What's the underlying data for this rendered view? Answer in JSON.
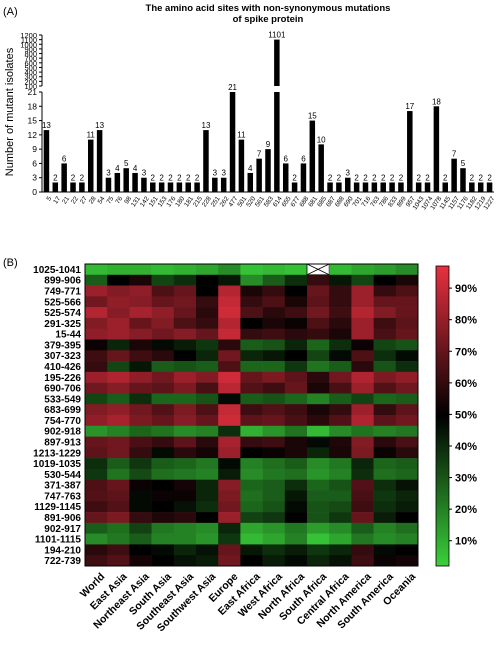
{
  "panel_a_label": "(A)",
  "panel_b_label": "(B)",
  "chart_data": [
    {
      "type": "bar",
      "title": "The amino acid sites with non-synonymous mutations of spike protein",
      "title_lines": [
        "The amino acid sites with non-synonymous mutations",
        "of spike protein"
      ],
      "ylabel": "Number of mutant isolates",
      "xlabel": "",
      "broken_axis": true,
      "lower_ticks": [
        0,
        3,
        6,
        9,
        12,
        15,
        18,
        21
      ],
      "upper_ticks": [
        100,
        200,
        300,
        400,
        500,
        600,
        700,
        800,
        900,
        1000,
        1100,
        1200
      ],
      "categories": [
        "5",
        "17",
        "21",
        "22",
        "27",
        "28",
        "54",
        "75",
        "76",
        "98",
        "131",
        "142",
        "151",
        "153",
        "176",
        "180",
        "181",
        "215",
        "228",
        "251",
        "262",
        "477",
        "501",
        "520",
        "561",
        "583",
        "614",
        "655",
        "677",
        "688",
        "681",
        "685",
        "687",
        "688",
        "690",
        "701",
        "716",
        "763",
        "786",
        "833",
        "899",
        "957",
        "1043",
        "1074",
        "1078",
        "1145",
        "1157",
        "1176",
        "1182",
        "1219",
        "1227"
      ],
      "values": [
        13,
        2,
        6,
        2,
        2,
        11,
        13,
        3,
        4,
        5,
        4,
        3,
        2,
        2,
        2,
        2,
        2,
        2,
        13,
        3,
        3,
        21,
        11,
        4,
        7,
        9,
        1101,
        6,
        2,
        6,
        15,
        10,
        2,
        2,
        3,
        2,
        2,
        2,
        2,
        2,
        2,
        17,
        2,
        2,
        18,
        2,
        7,
        5,
        2,
        2,
        2
      ],
      "data_labels": [
        "13",
        "2",
        "6",
        "2",
        "2",
        "11",
        "13",
        "3",
        "4",
        "5",
        "4",
        "3",
        "2",
        "2",
        "2",
        "2",
        "2",
        "2",
        "13",
        "3",
        "3",
        "21",
        "11",
        "4",
        "7",
        "9",
        "1101",
        "6",
        "2",
        "6",
        "15",
        "10",
        "2",
        "2",
        "3",
        "2",
        "2",
        "2",
        "2",
        "2",
        "2",
        "17",
        "2",
        "2",
        "18",
        "2",
        "7",
        "5",
        "2",
        "2",
        "2"
      ],
      "bar_color": "#000000"
    },
    {
      "type": "heatmap",
      "rows": [
        "1025-1041",
        "899-906",
        "749-771",
        "525-566",
        "525-574",
        "291-325",
        "15-44",
        "379-395",
        "307-323",
        "410-426",
        "195-226",
        "690-706",
        "533-549",
        "683-699",
        "754-770",
        "902-918",
        "897-913",
        "1213-1229",
        "1019-1035",
        "530-544",
        "371-387",
        "747-763",
        "1129-1145",
        "891-906",
        "902-917",
        "1101-1115",
        "194-210",
        "722-739"
      ],
      "columns": [
        "World",
        "East Asia",
        "Northeast Asia",
        "South Asia",
        "Southeast Asia",
        "Southwest Asia",
        "Europe",
        "East Africa",
        "West Africa",
        "North Africa",
        "South Africa",
        "Central Africa",
        "North America",
        "South America",
        "Oceania"
      ],
      "values": [
        [
          10,
          12,
          12,
          10,
          12,
          14,
          20,
          8,
          10,
          8,
          null,
          10,
          14,
          16,
          20
        ],
        [
          30,
          50,
          55,
          35,
          40,
          50,
          45,
          20,
          30,
          40,
          60,
          45,
          35,
          50,
          55
        ],
        [
          80,
          75,
          78,
          65,
          70,
          50,
          85,
          55,
          60,
          50,
          70,
          60,
          80,
          60,
          65
        ],
        [
          72,
          78,
          76,
          70,
          72,
          60,
          88,
          60,
          65,
          55,
          68,
          60,
          80,
          70,
          70
        ],
        [
          85,
          76,
          82,
          78,
          70,
          58,
          90,
          65,
          58,
          62,
          72,
          62,
          85,
          75,
          70
        ],
        [
          75,
          80,
          70,
          75,
          65,
          60,
          85,
          50,
          55,
          52,
          65,
          58,
          80,
          62,
          68
        ],
        [
          78,
          80,
          76,
          72,
          76,
          70,
          88,
          60,
          62,
          58,
          60,
          55,
          80,
          64,
          70
        ],
        [
          52,
          42,
          55,
          48,
          44,
          38,
          58,
          30,
          32,
          42,
          28,
          40,
          52,
          35,
          32
        ],
        [
          62,
          70,
          62,
          58,
          50,
          42,
          72,
          42,
          45,
          50,
          35,
          48,
          65,
          40,
          48
        ],
        [
          60,
          35,
          45,
          30,
          32,
          30,
          65,
          28,
          28,
          38,
          25,
          30,
          58,
          32,
          40
        ],
        [
          80,
          84,
          78,
          72,
          80,
          75,
          90,
          70,
          74,
          68,
          58,
          72,
          84,
          74,
          78
        ],
        [
          72,
          76,
          70,
          68,
          74,
          64,
          86,
          66,
          62,
          70,
          55,
          64,
          80,
          66,
          72
        ],
        [
          35,
          30,
          40,
          28,
          28,
          32,
          48,
          30,
          32,
          28,
          22,
          30,
          36,
          28,
          30
        ],
        [
          75,
          78,
          72,
          66,
          74,
          65,
          88,
          62,
          66,
          62,
          55,
          60,
          80,
          60,
          68
        ],
        [
          78,
          82,
          74,
          70,
          76,
          70,
          90,
          68,
          70,
          64,
          58,
          66,
          84,
          68,
          72
        ],
        [
          18,
          22,
          28,
          25,
          20,
          22,
          40,
          12,
          18,
          25,
          10,
          20,
          25,
          22,
          24
        ],
        [
          70,
          72,
          64,
          60,
          68,
          58,
          82,
          60,
          62,
          55,
          48,
          56,
          75,
          58,
          64
        ],
        [
          68,
          72,
          60,
          48,
          58,
          54,
          80,
          50,
          52,
          55,
          42,
          55,
          74,
          52,
          58
        ],
        [
          40,
          30,
          38,
          30,
          28,
          24,
          48,
          22,
          26,
          30,
          20,
          24,
          42,
          28,
          30
        ],
        [
          38,
          25,
          34,
          26,
          24,
          22,
          44,
          20,
          24,
          26,
          18,
          22,
          40,
          26,
          28
        ],
        [
          65,
          70,
          52,
          50,
          54,
          42,
          76,
          28,
          30,
          40,
          28,
          32,
          66,
          40,
          46
        ],
        [
          66,
          68,
          48,
          52,
          52,
          42,
          74,
          26,
          30,
          45,
          30,
          30,
          64,
          38,
          42
        ],
        [
          62,
          66,
          48,
          50,
          46,
          40,
          72,
          28,
          32,
          48,
          32,
          34,
          62,
          40,
          44
        ],
        [
          70,
          74,
          60,
          56,
          58,
          50,
          80,
          36,
          38,
          50,
          32,
          38,
          70,
          44,
          50
        ],
        [
          30,
          26,
          36,
          24,
          22,
          20,
          42,
          14,
          18,
          24,
          16,
          20,
          30,
          22,
          26
        ],
        [
          20,
          24,
          30,
          22,
          22,
          18,
          38,
          10,
          14,
          22,
          8,
          14,
          24,
          20,
          22
        ],
        [
          58,
          62,
          50,
          48,
          42,
          46,
          70,
          45,
          40,
          44,
          38,
          42,
          60,
          48,
          50
        ],
        [
          62,
          66,
          54,
          50,
          46,
          44,
          72,
          50,
          44,
          48,
          42,
          46,
          62,
          52,
          54
        ]
      ],
      "colorbar_ticks": [
        "90%",
        "80%",
        "70%",
        "60%",
        "50%",
        "40%",
        "30%",
        "20%",
        "10%"
      ],
      "colorbar_values": [
        90,
        80,
        70,
        60,
        50,
        40,
        30,
        20,
        10
      ],
      "color_scale": [
        "#3ad03a",
        "#000000",
        "#e83040"
      ],
      "missing_marker": "cross"
    }
  ]
}
